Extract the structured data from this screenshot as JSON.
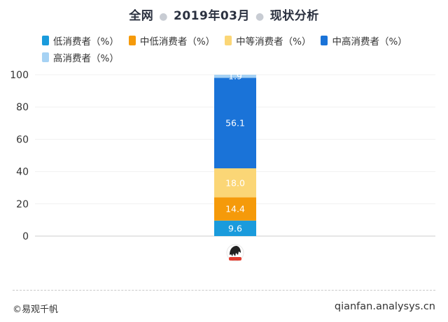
{
  "header": {
    "part1": "全网",
    "part2": "2019年03月",
    "part3": "现状分析"
  },
  "legend": [
    {
      "label": "低消费者（%）",
      "color": "#1a9bdc"
    },
    {
      "label": "中低消费者（%）",
      "color": "#f59a0a"
    },
    {
      "label": "中等消费者（%）",
      "color": "#fbd676"
    },
    {
      "label": "中高消费者（%）",
      "color": "#1a73d8"
    },
    {
      "label": "高消费者（%）",
      "color": "#a6d2f4"
    }
  ],
  "chart_data": {
    "type": "bar",
    "stacked": true,
    "categories": [
      ""
    ],
    "yticks": [
      "0",
      "20",
      "40",
      "60",
      "80",
      "100"
    ],
    "ylim": [
      0,
      100
    ],
    "grid": true,
    "legend_position": "top",
    "series": [
      {
        "name": "低消费者（%）",
        "values": [
          9.6
        ],
        "label": "9.6",
        "color": "#1a9bdc",
        "label_color": "#ffffff"
      },
      {
        "name": "中低消费者（%）",
        "values": [
          14.4
        ],
        "label": "14.4",
        "color": "#f59a0a",
        "label_color": "#ffffff"
      },
      {
        "name": "中等消费者（%）",
        "values": [
          18.0
        ],
        "label": "18.0",
        "color": "#fbd676",
        "label_color": "#ffffff"
      },
      {
        "name": "中高消费者（%）",
        "values": [
          56.1
        ],
        "label": "56.1",
        "color": "#1a73d8",
        "label_color": "#ffffff"
      },
      {
        "name": "高消费者（%）",
        "values": [
          1.9
        ],
        "label": "1.9",
        "color": "#a6d2f4",
        "label_color": "#ffffff"
      }
    ],
    "category_icon": "lion-logo-icon"
  },
  "footer": {
    "left": "©易观千帆",
    "right": "qianfan.analysys.cn"
  }
}
